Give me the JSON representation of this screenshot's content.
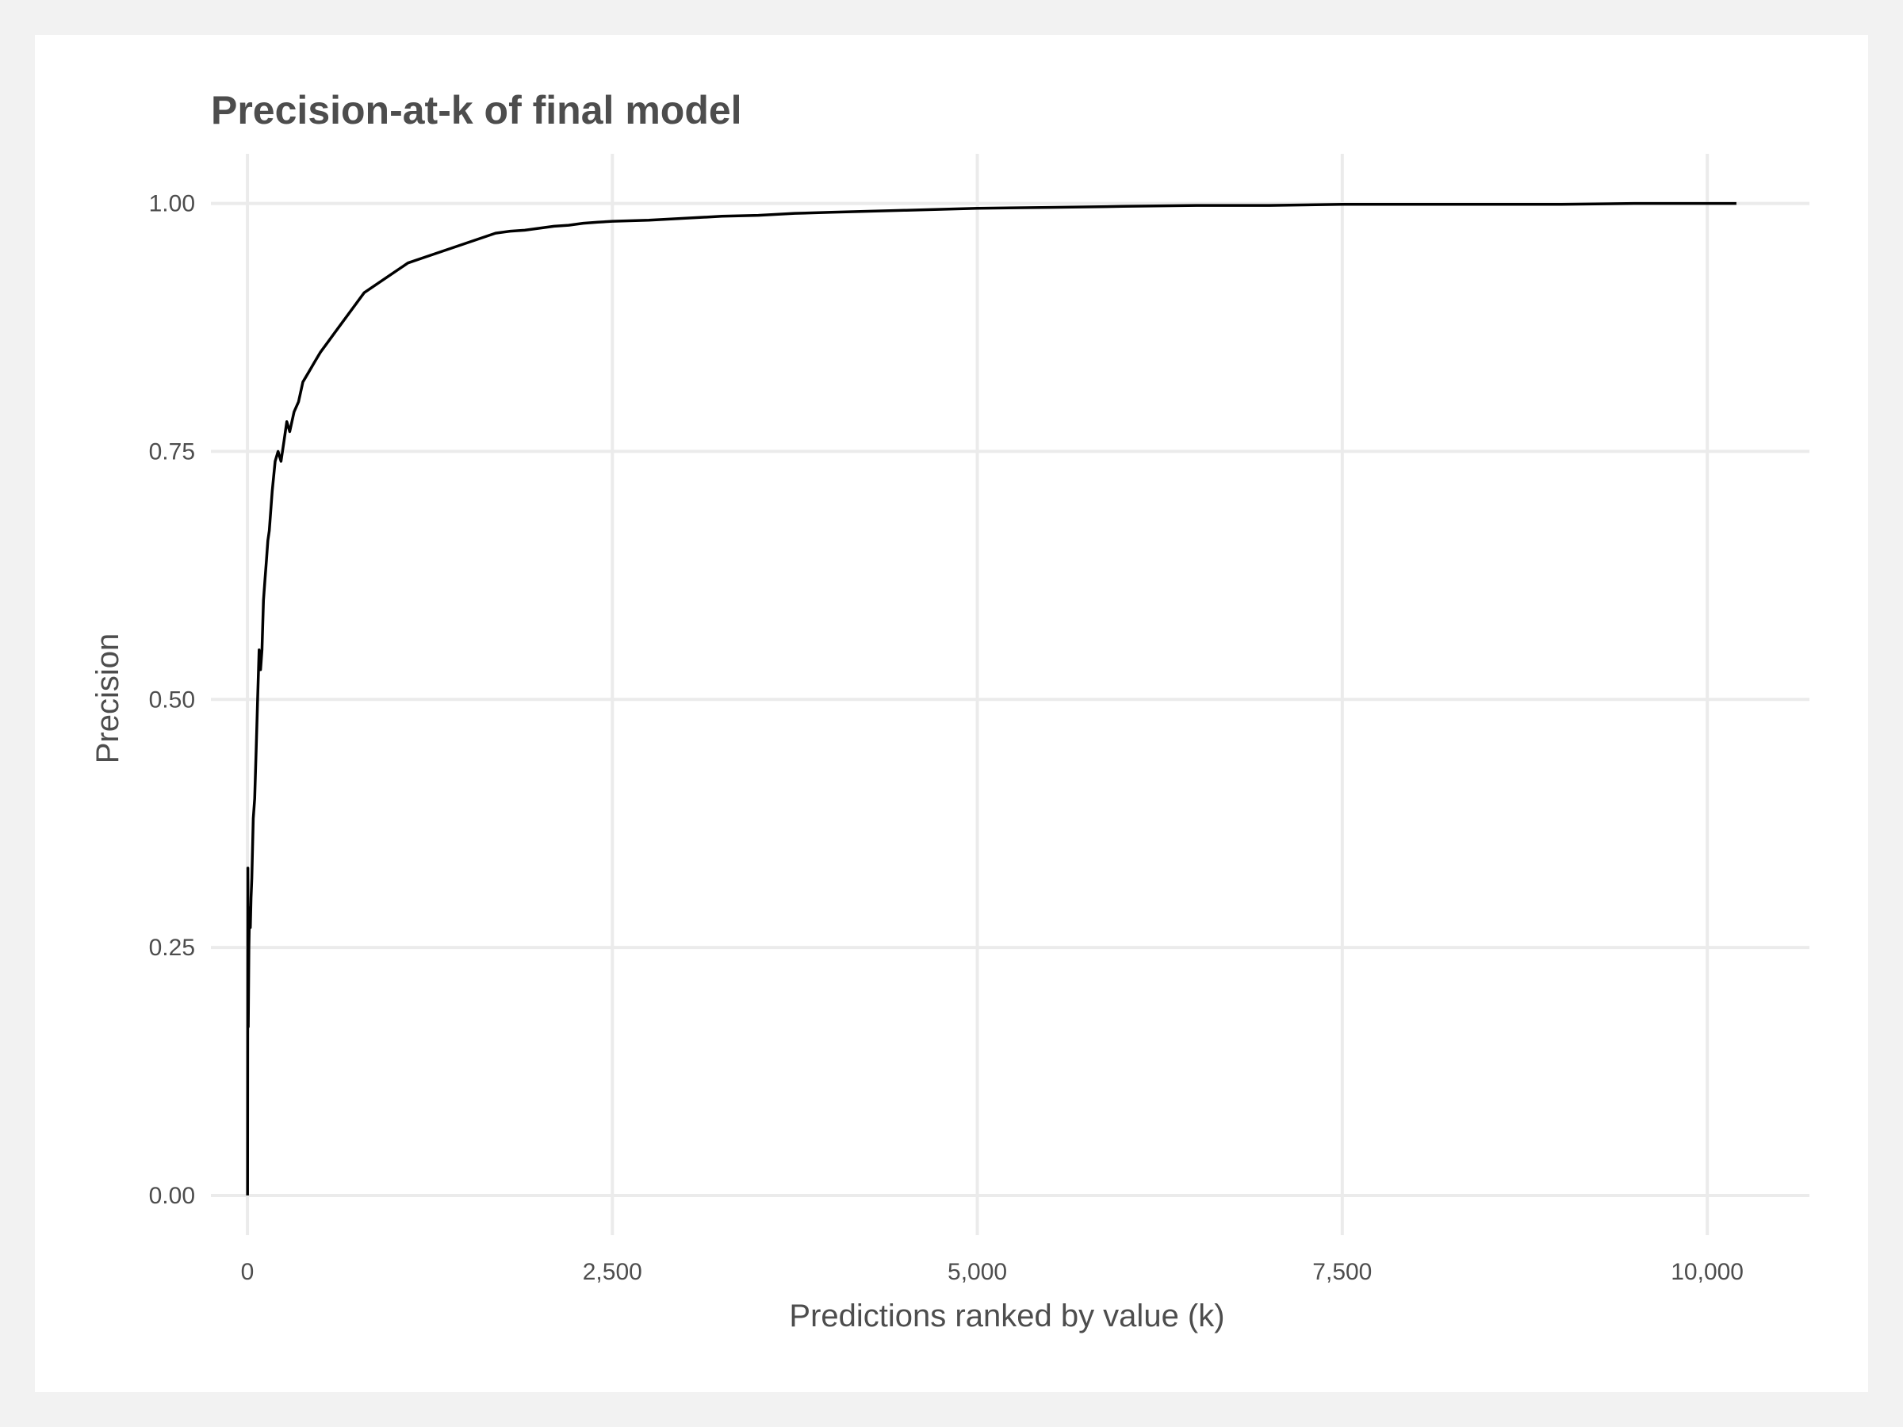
{
  "chart_data": {
    "type": "line",
    "title": "Precision-at-k of final model",
    "xlabel": "Predictions ranked by value (k)",
    "ylabel": "Precision",
    "xlim": [
      -250,
      10700
    ],
    "ylim": [
      -0.04,
      1.05
    ],
    "x_ticks": [
      0,
      2500,
      5000,
      7500,
      10000
    ],
    "x_tick_labels": [
      "0",
      "2,500",
      "5,000",
      "7,500",
      "10,000"
    ],
    "y_ticks": [
      0,
      0.25,
      0.5,
      0.75,
      1.0
    ],
    "y_tick_labels": [
      "0.00",
      "0.25",
      "0.50",
      "0.75",
      "1.00"
    ],
    "grid": true,
    "series": [
      {
        "color": "#000000",
        "x": [
          1,
          3,
          6,
          10,
          15,
          20,
          25,
          30,
          40,
          50,
          60,
          70,
          80,
          90,
          100,
          110,
          120,
          130,
          140,
          150,
          170,
          190,
          210,
          230,
          250,
          270,
          290,
          320,
          350,
          380,
          420,
          460,
          500,
          550,
          600,
          650,
          700,
          750,
          800,
          850,
          900,
          950,
          1000,
          1100,
          1200,
          1300,
          1400,
          1500,
          1600,
          1700,
          1800,
          1900,
          2000,
          2100,
          2200,
          2300,
          2400,
          2500,
          2750,
          3000,
          3250,
          3500,
          3750,
          4000,
          4500,
          5000,
          5500,
          6000,
          6500,
          7000,
          7500,
          8000,
          8500,
          9000,
          9500,
          10000,
          10200
        ],
        "y": [
          0.0,
          0.33,
          0.17,
          0.25,
          0.29,
          0.27,
          0.3,
          0.32,
          0.38,
          0.4,
          0.45,
          0.5,
          0.55,
          0.53,
          0.55,
          0.6,
          0.62,
          0.64,
          0.66,
          0.67,
          0.71,
          0.74,
          0.75,
          0.74,
          0.76,
          0.78,
          0.77,
          0.79,
          0.8,
          0.82,
          0.83,
          0.84,
          0.85,
          0.86,
          0.87,
          0.88,
          0.89,
          0.9,
          0.91,
          0.915,
          0.92,
          0.925,
          0.93,
          0.94,
          0.945,
          0.95,
          0.955,
          0.96,
          0.965,
          0.97,
          0.972,
          0.973,
          0.975,
          0.977,
          0.978,
          0.98,
          0.981,
          0.982,
          0.983,
          0.985,
          0.987,
          0.988,
          0.99,
          0.991,
          0.993,
          0.995,
          0.996,
          0.997,
          0.998,
          0.998,
          0.999,
          0.999,
          0.999,
          0.999,
          1.0,
          1.0,
          1.0
        ]
      }
    ]
  }
}
